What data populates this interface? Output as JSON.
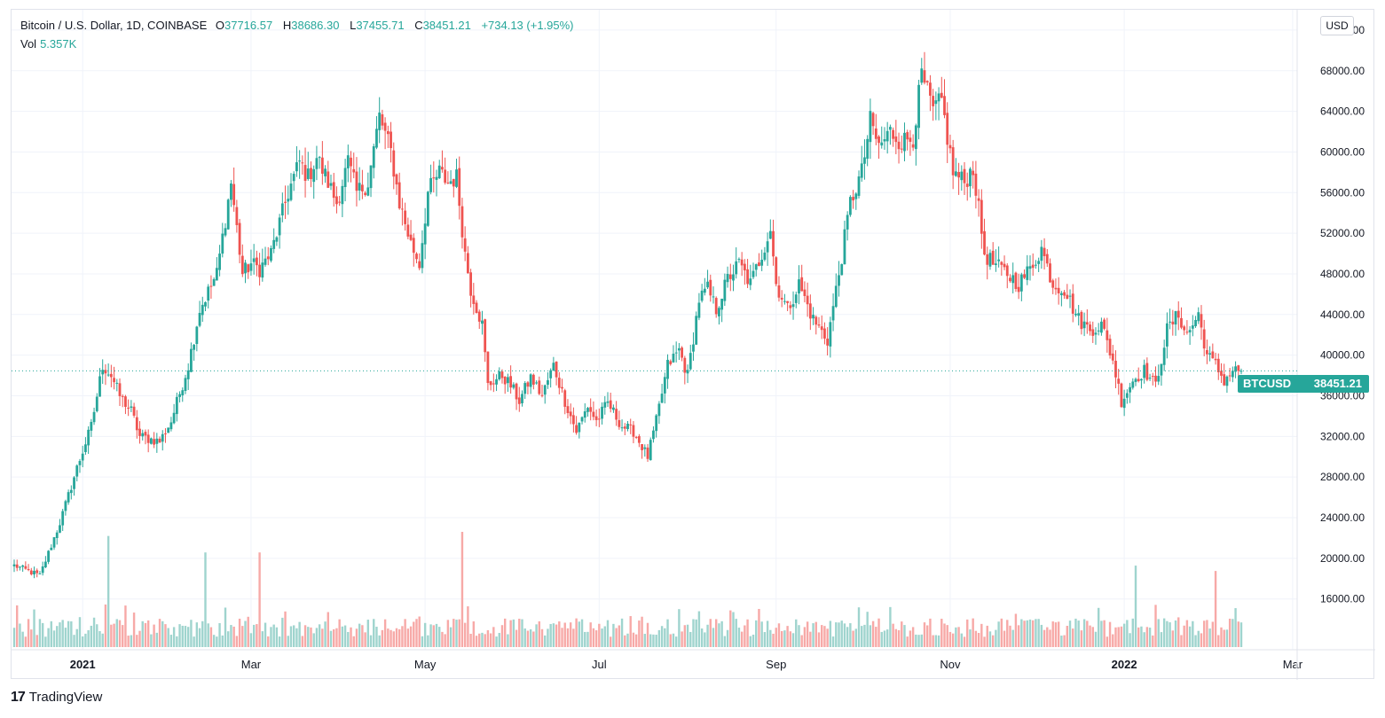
{
  "legend": {
    "symbol": "Bitcoin / U.S. Dollar, 1D, COINBASE",
    "open_label": "O",
    "open": "37716.57",
    "high_label": "H",
    "high": "38686.30",
    "low_label": "L",
    "low": "37455.71",
    "close_label": "C",
    "close": "38451.21",
    "change": "+734.13 (+1.95%)",
    "vol_label": "Vol",
    "vol": "5.357K"
  },
  "currency_button": "USD",
  "price_tag": {
    "symbol": "BTCUSD",
    "price": "38451.21"
  },
  "brand": {
    "logo": "17",
    "name": "TradingView"
  },
  "colors": {
    "up": "#26a69a",
    "down": "#ef5350",
    "up_vol": "#9fd4ce",
    "down_vol": "#f7a9a7",
    "grid": "#f0f3fa"
  },
  "chart_data": {
    "type": "candlestick",
    "title": "Bitcoin / U.S. Dollar, 1D, COINBASE",
    "ylabel": "USD",
    "ylim": [
      11000,
      74000
    ],
    "y_ticks": [
      16000,
      20000,
      24000,
      28000,
      32000,
      36000,
      40000,
      44000,
      48000,
      52000,
      56000,
      60000,
      64000,
      68000,
      72000
    ],
    "y_tick_labels": [
      "16000.00",
      "20000.00",
      "24000.00",
      "28000.00",
      "32000.00",
      "36000.00",
      "40000.00",
      "44000.00",
      "48000.00",
      "52000.00",
      "56000.00",
      "60000.00",
      "64000.00",
      "68000.00",
      "72000.00"
    ],
    "x_ticks": [
      {
        "label": "2021",
        "day": 0,
        "bold": true
      },
      {
        "label": "Mar",
        "day": 59,
        "bold": false
      },
      {
        "label": "May",
        "day": 120,
        "bold": false
      },
      {
        "label": "Jul",
        "day": 181,
        "bold": false
      },
      {
        "label": "Sep",
        "day": 243,
        "bold": false
      },
      {
        "label": "Nov",
        "day": 304,
        "bold": false
      },
      {
        "label": "2022",
        "day": 365,
        "bold": true
      },
      {
        "label": "Mar",
        "day": 424,
        "bold": false
      }
    ],
    "series_start_day": -24,
    "series_end_day": 418,
    "close_anchors": [
      [
        -24,
        19300
      ],
      [
        -15,
        18300
      ],
      [
        -8,
        23500
      ],
      [
        -2,
        28900
      ],
      [
        3,
        33000
      ],
      [
        7,
        39000
      ],
      [
        10,
        38000
      ],
      [
        13,
        36000
      ],
      [
        17,
        34500
      ],
      [
        20,
        32000
      ],
      [
        27,
        31500
      ],
      [
        31,
        33500
      ],
      [
        37,
        39000
      ],
      [
        41,
        44500
      ],
      [
        47,
        48000
      ],
      [
        52,
        57000
      ],
      [
        56,
        48000
      ],
      [
        59,
        49000
      ],
      [
        62,
        48500
      ],
      [
        66,
        50000
      ],
      [
        72,
        56000
      ],
      [
        76,
        59000
      ],
      [
        79,
        57500
      ],
      [
        82,
        59500
      ],
      [
        86,
        57000
      ],
      [
        89,
        55000
      ],
      [
        93,
        59000
      ],
      [
        96,
        56000
      ],
      [
        100,
        57000
      ],
      [
        104,
        63500
      ],
      [
        108,
        60000
      ],
      [
        111,
        55000
      ],
      [
        115,
        51000
      ],
      [
        118,
        49000
      ],
      [
        121,
        56000
      ],
      [
        125,
        58000
      ],
      [
        128,
        57000
      ],
      [
        131,
        57500
      ],
      [
        134,
        50000
      ],
      [
        136,
        46500
      ],
      [
        140,
        43000
      ],
      [
        142,
        37000
      ],
      [
        144,
        37500
      ],
      [
        147,
        38000
      ],
      [
        150,
        37000
      ],
      [
        153,
        35500
      ],
      [
        157,
        37800
      ],
      [
        161,
        36000
      ],
      [
        165,
        39000
      ],
      [
        169,
        35500
      ],
      [
        173,
        32500
      ],
      [
        177,
        35000
      ],
      [
        180,
        33500
      ],
      [
        184,
        35300
      ],
      [
        189,
        33000
      ],
      [
        193,
        32500
      ],
      [
        198,
        30000
      ],
      [
        201,
        33500
      ],
      [
        205,
        39000
      ],
      [
        209,
        40500
      ],
      [
        212,
        38000
      ],
      [
        216,
        45500
      ],
      [
        219,
        46500
      ],
      [
        222,
        44500
      ],
      [
        226,
        47500
      ],
      [
        230,
        49000
      ],
      [
        234,
        47000
      ],
      [
        238,
        50000
      ],
      [
        241,
        52500
      ],
      [
        243,
        47000
      ],
      [
        247,
        44500
      ],
      [
        251,
        47000
      ],
      [
        256,
        43500
      ],
      [
        261,
        41500
      ],
      [
        265,
        48000
      ],
      [
        269,
        55000
      ],
      [
        273,
        58000
      ],
      [
        276,
        63000
      ],
      [
        279,
        60500
      ],
      [
        283,
        62000
      ],
      [
        287,
        61000
      ],
      [
        291,
        61500
      ],
      [
        294,
        67500
      ],
      [
        298,
        64000
      ],
      [
        301,
        65000
      ],
      [
        305,
        58000
      ],
      [
        309,
        57000
      ],
      [
        312,
        58500
      ],
      [
        316,
        50000
      ],
      [
        319,
        49000
      ],
      [
        324,
        48000
      ],
      [
        328,
        47000
      ],
      [
        332,
        48500
      ],
      [
        336,
        50500
      ],
      [
        340,
        47000
      ],
      [
        344,
        46500
      ],
      [
        349,
        43500
      ],
      [
        353,
        42500
      ],
      [
        357,
        43000
      ],
      [
        361,
        39500
      ],
      [
        364,
        35500
      ],
      [
        368,
        37500
      ],
      [
        372,
        38500
      ],
      [
        376,
        37000
      ],
      [
        380,
        42500
      ],
      [
        384,
        44000
      ],
      [
        387,
        42000
      ],
      [
        391,
        44000
      ],
      [
        394,
        40000
      ],
      [
        397,
        39000
      ],
      [
        400,
        37500
      ],
      [
        403,
        38500
      ],
      [
        406,
        38451
      ]
    ],
    "volume_spikes": [
      {
        "day": 9,
        "volume": 27000
      },
      {
        "day": 43,
        "volume": 23000
      },
      {
        "day": 62,
        "volume": 23000
      },
      {
        "day": 133,
        "volume": 28000
      },
      {
        "day": 369,
        "volume": 19800
      },
      {
        "day": 397,
        "volume": 18500
      }
    ],
    "last_close": 38451.21
  }
}
